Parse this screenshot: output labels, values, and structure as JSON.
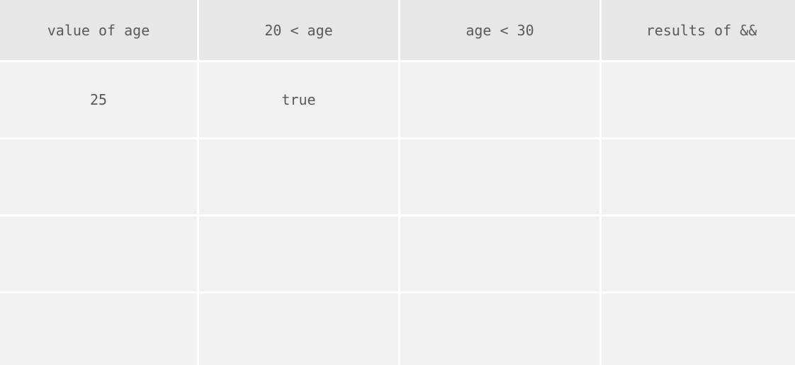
{
  "table": {
    "headers": [
      "value of age",
      "20 < age",
      "age < 30",
      "results of &&"
    ],
    "rows": [
      [
        "25",
        "true",
        "",
        ""
      ],
      [
        "",
        "",
        "",
        ""
      ],
      [
        "",
        "",
        "",
        ""
      ],
      [
        "",
        "",
        "",
        ""
      ]
    ]
  },
  "colors": {
    "header_bg": "#e7e7e7",
    "cell_bg": "#f1f1f1",
    "text": "#595959",
    "grid_lines": "#ffffff"
  }
}
